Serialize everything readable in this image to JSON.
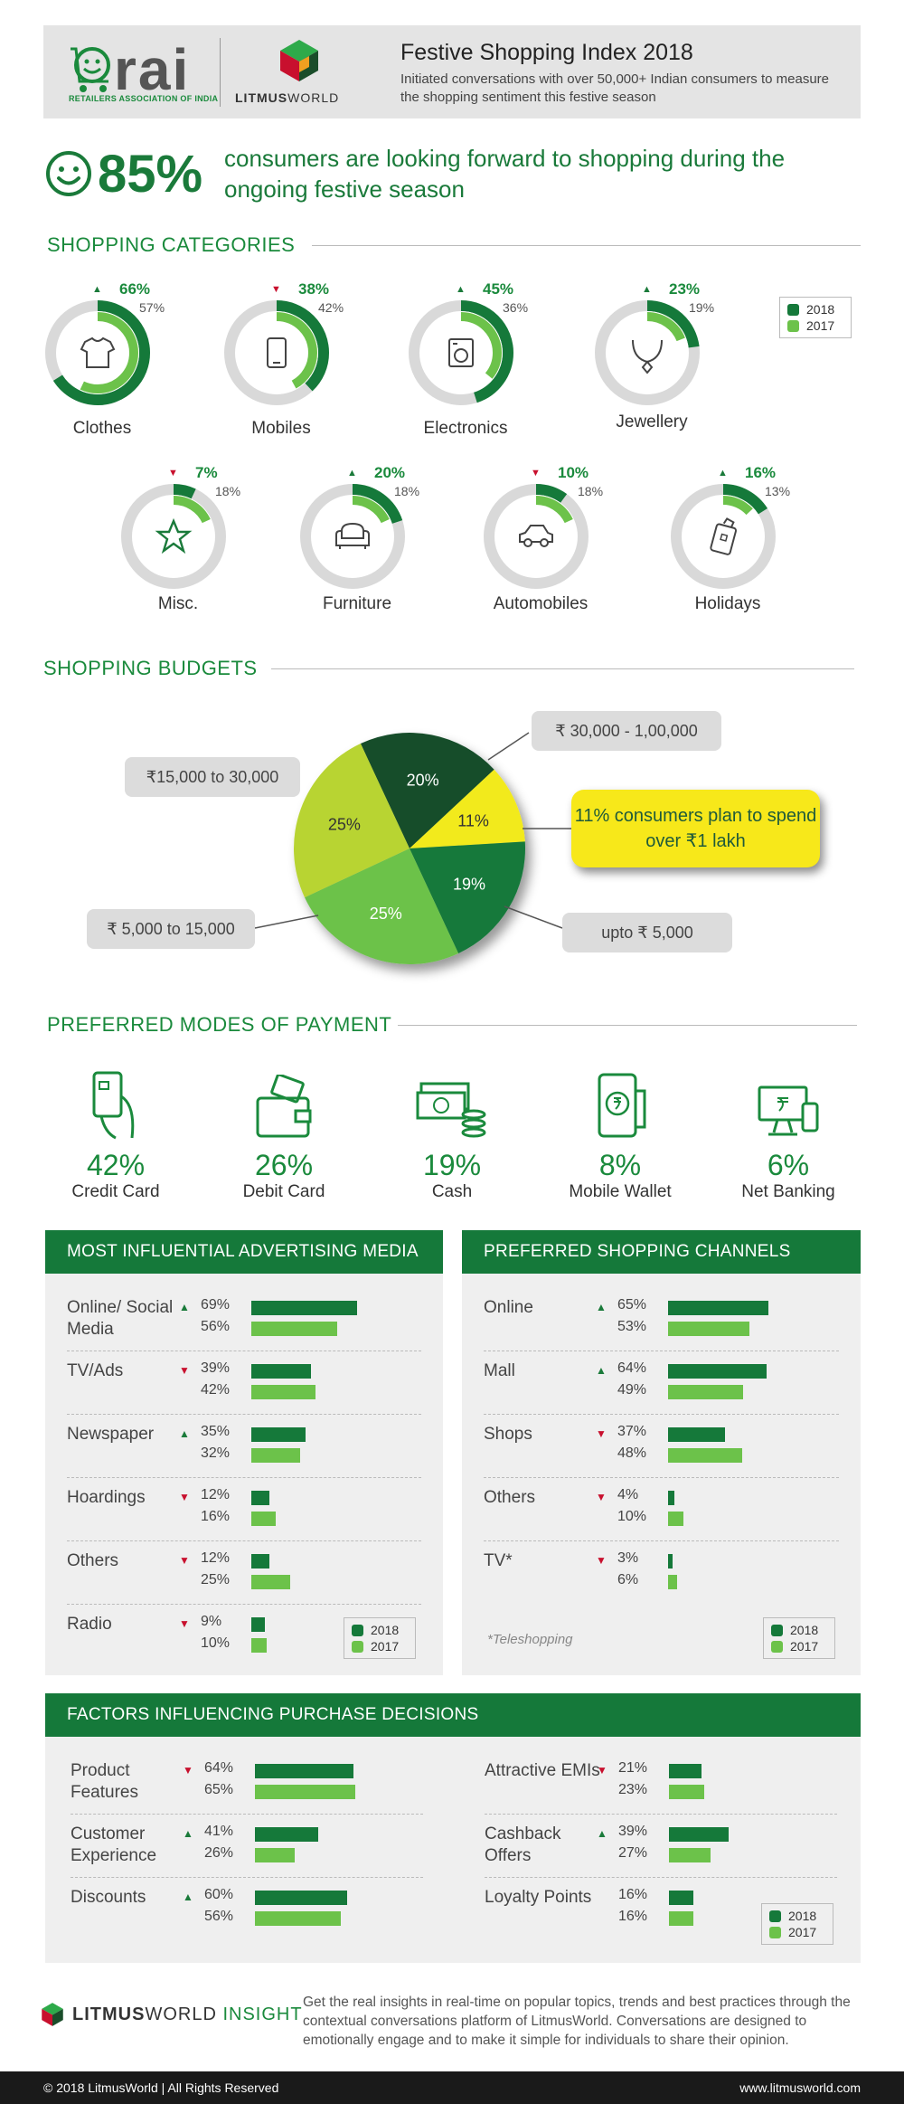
{
  "header": {
    "rai_word": "rai",
    "rai_sub": "RETAILERS ASSOCIATION OF INDIA",
    "lw_word_a": "LITMUS",
    "lw_word_b": "WORLD",
    "title": "Festive Shopping Index 2018",
    "subtitle": "Initiated conversations with over 50,000+ Indian consumers to measure the shopping sentiment this festive season"
  },
  "hero": {
    "pct": "85%",
    "text": "consumers are looking forward to shopping during the ongoing festive season"
  },
  "colors": {
    "dark": "#15793a",
    "light": "#6cc24a",
    "ring": "#d9d9d9",
    "up": "#1a7a3a",
    "down": "#c8102e"
  },
  "sections": {
    "categories": "SHOPPING CATEGORIES",
    "budgets": "SHOPPING BUDGETS",
    "payment": "PREFERRED MODES OF PAYMENT",
    "media": "MOST INFLUENTIAL ADVERTISING MEDIA",
    "channels": "PREFERRED SHOPPING CHANNELS",
    "factors": "FACTORS INFLUENCING PURCHASE DECISIONS"
  },
  "legend": {
    "y2018": "2018",
    "y2017": "2017"
  },
  "chart_data": [
    {
      "type": "donut",
      "title": "SHOPPING CATEGORIES",
      "series_names": [
        "2018",
        "2017"
      ],
      "items": [
        {
          "category": "Clothes",
          "v2018": 66,
          "v2017": 57,
          "v2018_label": "66%",
          "v2017_label": "57%",
          "trend": "up",
          "icon": "shirt-icon"
        },
        {
          "category": "Mobiles",
          "v2018": 38,
          "v2017": 42,
          "v2018_label": "38%",
          "v2017_label": "42%",
          "trend": "down",
          "icon": "mobile-phone-icon"
        },
        {
          "category": "Electronics",
          "v2018": 45,
          "v2017": 36,
          "v2018_label": "45%",
          "v2017_label": "36%",
          "trend": "up",
          "icon": "washing-machine-icon"
        },
        {
          "category": "Jewellery",
          "v2018": 23,
          "v2017": 19,
          "v2018_label": "23%",
          "v2017_label": "19%",
          "trend": "up",
          "icon": "necklace-icon"
        },
        {
          "category": "Misc.",
          "v2018": 7,
          "v2017": 18,
          "v2018_label": "7%",
          "v2017_label": "18%",
          "trend": "down",
          "icon": "star-icon"
        },
        {
          "category": "Furniture",
          "v2018": 20,
          "v2017": 18,
          "v2018_label": "20%",
          "v2017_label": "18%",
          "trend": "up",
          "icon": "sofa-icon"
        },
        {
          "category": "Automobiles",
          "v2018": 10,
          "v2017": 18,
          "v2018_label": "10%",
          "v2017_label": "18%",
          "trend": "down",
          "icon": "car-icon"
        },
        {
          "category": "Holidays",
          "v2018": 16,
          "v2017": 13,
          "v2018_label": "16%",
          "v2017_label": "13%",
          "trend": "up",
          "icon": "luggage-icon"
        }
      ]
    },
    {
      "type": "pie",
      "title": "SHOPPING BUDGETS",
      "slices": [
        {
          "label": "₹ 30,000 - 1,00,000",
          "value": 20,
          "value_label": "20%",
          "color": "#174d2b"
        },
        {
          "label": "over ₹1 lakh",
          "value": 11,
          "value_label": "11%",
          "color": "#f2ea1a"
        },
        {
          "label": "upto ₹ 5,000",
          "value": 19,
          "value_label": "19%",
          "color": "#15793a"
        },
        {
          "label": "₹ 5,000 to 15,000",
          "value": 25,
          "value_label": "25%",
          "color": "#6cc24a"
        },
        {
          "label": "₹15,000 to 30,000",
          "value": 25,
          "value_label": "25%",
          "color": "#b8d433"
        }
      ],
      "callout": "11% consumers plan to spend over ₹1 lakh"
    },
    {
      "type": "bar",
      "title": "PREFERRED MODES OF PAYMENT",
      "categories": [
        "Credit Card",
        "Debit Card",
        "Cash",
        "Mobile Wallet",
        "Net Banking"
      ],
      "values": [
        42,
        26,
        19,
        8,
        6
      ],
      "value_labels": [
        "42%",
        "26%",
        "19%",
        "8%",
        "6%"
      ],
      "icons": [
        "credit-card-icon",
        "wallet-icon",
        "cash-icon",
        "mobile-wallet-icon",
        "net-banking-icon"
      ]
    },
    {
      "type": "bar",
      "title": "MOST INFLUENTIAL ADVERTISING MEDIA",
      "series_names": [
        "2018",
        "2017"
      ],
      "rows": [
        {
          "label": "Online/ Social Media",
          "v2018": 69,
          "v2017": 56,
          "v2018_label": "69%",
          "v2017_label": "56%",
          "trend": "up"
        },
        {
          "label": "TV/Ads",
          "v2018": 39,
          "v2017": 42,
          "v2018_label": "39%",
          "v2017_label": "42%",
          "trend": "down"
        },
        {
          "label": "Newspaper",
          "v2018": 35,
          "v2017": 32,
          "v2018_label": "35%",
          "v2017_label": "32%",
          "trend": "up"
        },
        {
          "label": "Hoardings",
          "v2018": 12,
          "v2017": 16,
          "v2018_label": "12%",
          "v2017_label": "16%",
          "trend": "down"
        },
        {
          "label": "Others",
          "v2018": 12,
          "v2017": 25,
          "v2018_label": "12%",
          "v2017_label": "25%",
          "trend": "down"
        },
        {
          "label": "Radio",
          "v2018": 9,
          "v2017": 10,
          "v2018_label": "9%",
          "v2017_label": "10%",
          "trend": "down"
        }
      ]
    },
    {
      "type": "bar",
      "title": "PREFERRED SHOPPING CHANNELS",
      "series_names": [
        "2018",
        "2017"
      ],
      "rows": [
        {
          "label": "Online",
          "v2018": 65,
          "v2017": 53,
          "v2018_label": "65%",
          "v2017_label": "53%",
          "trend": "up"
        },
        {
          "label": "Mall",
          "v2018": 64,
          "v2017": 49,
          "v2018_label": "64%",
          "v2017_label": "49%",
          "trend": "up"
        },
        {
          "label": "Shops",
          "v2018": 37,
          "v2017": 48,
          "v2018_label": "37%",
          "v2017_label": "48%",
          "trend": "down"
        },
        {
          "label": "Others",
          "v2018": 4,
          "v2017": 10,
          "v2018_label": "4%",
          "v2017_label": "10%",
          "trend": "down"
        },
        {
          "label": "TV*",
          "v2018": 3,
          "v2017": 6,
          "v2018_label": "3%",
          "v2017_label": "6%",
          "trend": "down"
        }
      ],
      "note": "*Teleshopping"
    },
    {
      "type": "bar",
      "title": "FACTORS INFLUENCING PURCHASE DECISIONS",
      "series_names": [
        "2018",
        "2017"
      ],
      "rows": [
        {
          "label": "Product Features",
          "v2018": 64,
          "v2017": 65,
          "v2018_label": "64%",
          "v2017_label": "65%",
          "trend": "down"
        },
        {
          "label": "Customer Experience",
          "v2018": 41,
          "v2017": 26,
          "v2018_label": "41%",
          "v2017_label": "26%",
          "trend": "up"
        },
        {
          "label": "Discounts",
          "v2018": 60,
          "v2017": 56,
          "v2018_label": "60%",
          "v2017_label": "56%",
          "trend": "up"
        },
        {
          "label": "Attractive EMIs",
          "v2018": 21,
          "v2017": 23,
          "v2018_label": "21%",
          "v2017_label": "23%",
          "trend": "down"
        },
        {
          "label": "Cashback Offers",
          "v2018": 39,
          "v2017": 27,
          "v2018_label": "39%",
          "v2017_label": "27%",
          "trend": "up"
        },
        {
          "label": "Loyalty Points",
          "v2018": 16,
          "v2017": 16,
          "v2018_label": "16%",
          "v2017_label": "16%",
          "trend": "none"
        }
      ]
    }
  ],
  "footer": {
    "brand_a": "LITMUS",
    "brand_b": "WORLD",
    "brand_c": " INSIGHT",
    "text": "Get the real insights in real-time on popular topics, trends and best practices through the contextual conversations platform of LitmusWorld. Conversations are designed to emotionally engage and to make it simple for individuals to share their opinion.",
    "copyright": "© 2018 LitmusWorld | All Rights Reserved",
    "url": "www.litmusworld.com"
  }
}
